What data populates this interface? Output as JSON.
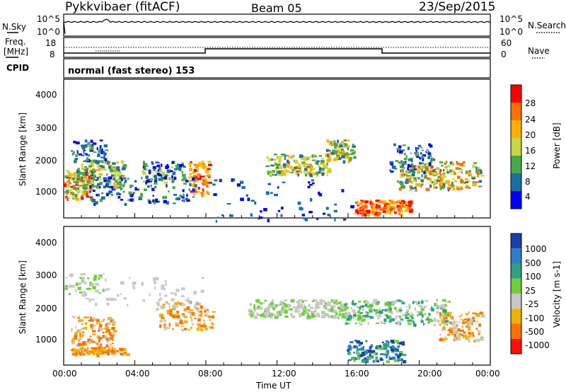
{
  "header": {
    "title": "Pykkvibaer (fitACF)",
    "beam": "Beam 05",
    "date": "23/Sep/2015"
  },
  "noise_panel": {
    "left_label": "N.Sky",
    "left_ticks": [
      "10^5",
      "10^0"
    ],
    "right_ticks": [
      "10^5",
      "10^0"
    ],
    "right_label": "N.Search"
  },
  "freq_panel": {
    "left_label_line1": "Freq.",
    "left_label_line2": "[MHz]",
    "left_ticks": [
      "18",
      "8"
    ],
    "right_ticks": [
      "60",
      "0"
    ],
    "right_label": "Nave"
  },
  "cpid": {
    "label": "CPID",
    "text": "normal (fast stereo) 153"
  },
  "chart_data": [
    {
      "type": "heatmap",
      "name": "power",
      "ylabel": "Slant Range [km]",
      "yticks": [
        "4000",
        "3000",
        "2000",
        "1000"
      ],
      "ylim": [
        180,
        4550
      ],
      "colorbar_label": "Power [dB]",
      "colorbar_ticks": [
        "28",
        "24",
        "20",
        "16",
        "12",
        "8",
        "4"
      ],
      "colorbar_colors": [
        "#ff0000",
        "#ff7000",
        "#ffb000",
        "#c8d840",
        "#4aa845",
        "#1a6fa0",
        "#0000ff"
      ]
    },
    {
      "type": "heatmap",
      "name": "velocity",
      "ylabel": "Slant Range [km]",
      "yticks": [
        "4000",
        "3000",
        "2000",
        "1000"
      ],
      "ylim": [
        180,
        4550
      ],
      "colorbar_label": "Velocity [m s-1]",
      "colorbar_ticks": [
        "1000",
        "500",
        "100",
        "25",
        "-25",
        "-100",
        "-500",
        "-1000"
      ],
      "colorbar_colors": [
        "#1a3fa8",
        "#2f7fc8",
        "#2e9f7f",
        "#6fcf3a",
        "#c8c8c4",
        "#f0b000",
        "#ff7000",
        "#ff1000"
      ]
    }
  ],
  "xaxis": {
    "ticks": [
      "00:00",
      "04:00",
      "08:00",
      "12:00",
      "16:00",
      "20:00",
      "00:00"
    ],
    "label": "Time UT"
  },
  "colors": {
    "frame": "#000000",
    "gray_scatter": "#c8c8c4"
  }
}
